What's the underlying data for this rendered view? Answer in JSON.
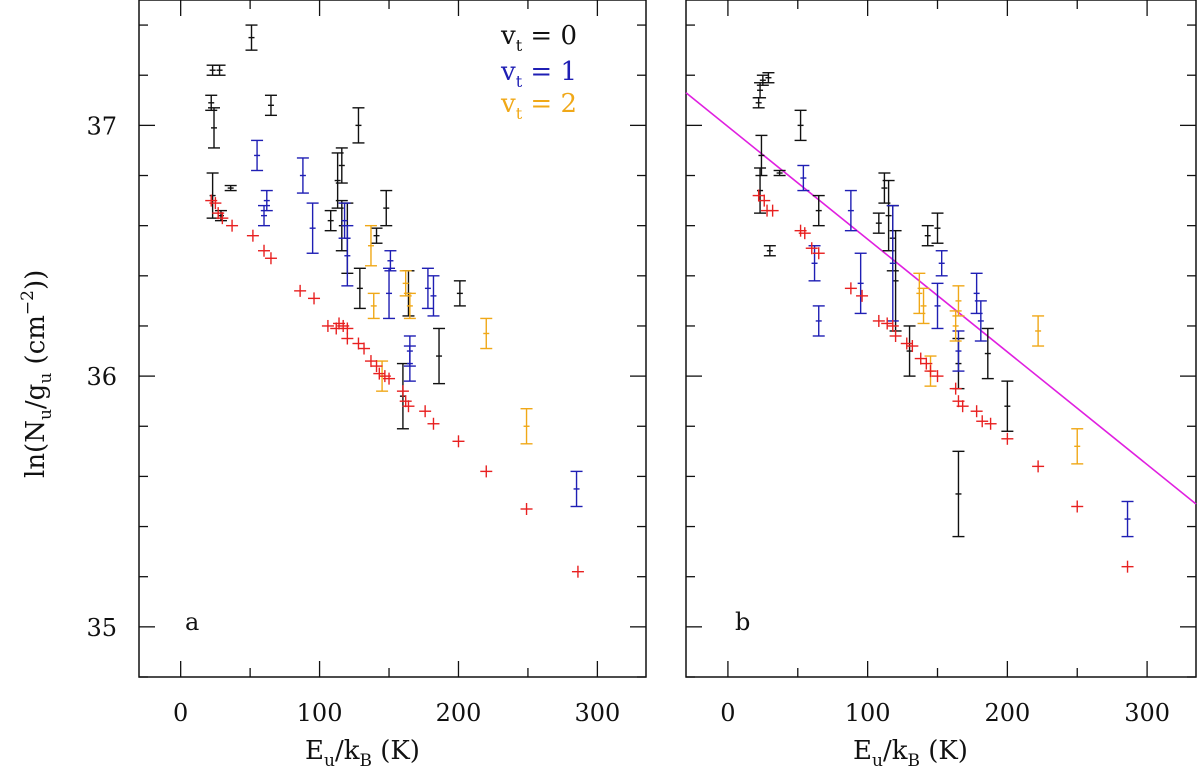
{
  "chart_data": [
    {
      "type": "scatter",
      "panel_label": "a",
      "xlabel": {
        "main": "E",
        "sub1": "u",
        "mid": "/k",
        "sub2": "B",
        "tail": " (K)"
      },
      "ylabel": {
        "main": "ln(N",
        "sub1": "u",
        "mid": "/g",
        "sub2": "u",
        "tail1": " (cm",
        "sup": "−2",
        "tail2": "))"
      },
      "xlim": [
        -30,
        335
      ],
      "ylim": [
        34.8,
        37.5
      ],
      "x_ticks": [
        "0",
        "100",
        "200",
        "300"
      ],
      "x_tick_values": [
        0,
        100,
        200,
        300
      ],
      "y_ticks": [
        "35",
        "36",
        "37"
      ],
      "y_tick_values": [
        35,
        36,
        37
      ],
      "legend": {
        "position": "top-right",
        "entries": [
          {
            "base": "v",
            "sub": "t",
            "text": " = 0",
            "color": "#111111"
          },
          {
            "base": "v",
            "sub": "t",
            "text": " = 1",
            "color": "#1f1fb4"
          },
          {
            "base": "v",
            "sub": "t",
            "text": " = 2",
            "color": "#f0a818"
          }
        ]
      },
      "series": [
        {
          "name": "vt=0",
          "color": "#111111",
          "marker": "errorbar",
          "points": [
            {
              "x": 23,
              "y": 37.22,
              "err": 0.02
            },
            {
              "x": 28,
              "y": 37.22,
              "err": 0.02
            },
            {
              "x": 22,
              "y": 37.09,
              "err": 0.03
            },
            {
              "x": 24,
              "y": 36.99,
              "err": 0.08
            },
            {
              "x": 23,
              "y": 36.72,
              "err": 0.09
            },
            {
              "x": 29,
              "y": 36.64,
              "err": 0.02
            },
            {
              "x": 36,
              "y": 36.75,
              "err": 0.01
            },
            {
              "x": 51,
              "y": 37.35,
              "err": 0.05
            },
            {
              "x": 65,
              "y": 37.08,
              "err": 0.04
            },
            {
              "x": 108,
              "y": 36.62,
              "err": 0.04
            },
            {
              "x": 113,
              "y": 36.78,
              "err": 0.11
            },
            {
              "x": 116,
              "y": 36.84,
              "err": 0.07
            },
            {
              "x": 116,
              "y": 36.6,
              "err": 0.1
            },
            {
              "x": 120,
              "y": 36.55,
              "err": 0.14
            },
            {
              "x": 128,
              "y": 37.0,
              "err": 0.07
            },
            {
              "x": 129,
              "y": 36.35,
              "err": 0.08
            },
            {
              "x": 141,
              "y": 36.56,
              "err": 0.03
            },
            {
              "x": 148,
              "y": 36.67,
              "err": 0.07
            },
            {
              "x": 160,
              "y": 35.92,
              "err": 0.13
            },
            {
              "x": 164,
              "y": 36.33,
              "err": 0.09
            },
            {
              "x": 186,
              "y": 36.08,
              "err": 0.11
            },
            {
              "x": 201,
              "y": 36.33,
              "err": 0.05
            }
          ]
        },
        {
          "name": "vt=1",
          "color": "#1f1fb4",
          "marker": "errorbar",
          "points": [
            {
              "x": 55,
              "y": 36.88,
              "err": 0.06
            },
            {
              "x": 60,
              "y": 36.64,
              "err": 0.04
            },
            {
              "x": 62,
              "y": 36.7,
              "err": 0.04
            },
            {
              "x": 88,
              "y": 36.8,
              "err": 0.07
            },
            {
              "x": 95,
              "y": 36.59,
              "err": 0.1
            },
            {
              "x": 118,
              "y": 36.62,
              "err": 0.07
            },
            {
              "x": 120,
              "y": 36.48,
              "err": 0.12
            },
            {
              "x": 150,
              "y": 36.33,
              "err": 0.1
            },
            {
              "x": 151,
              "y": 36.46,
              "err": 0.04
            },
            {
              "x": 165,
              "y": 36.05,
              "err": 0.07
            },
            {
              "x": 165,
              "y": 36.1,
              "err": 0.06
            },
            {
              "x": 178,
              "y": 36.35,
              "err": 0.08
            },
            {
              "x": 182,
              "y": 36.32,
              "err": 0.08
            },
            {
              "x": 285,
              "y": 35.55,
              "err": 0.07
            }
          ]
        },
        {
          "name": "vt=2",
          "color": "#f0a818",
          "marker": "errorbar",
          "points": [
            {
              "x": 137,
              "y": 36.52,
              "err": 0.08
            },
            {
              "x": 139,
              "y": 36.28,
              "err": 0.05
            },
            {
              "x": 145,
              "y": 36.0,
              "err": 0.06
            },
            {
              "x": 162,
              "y": 36.37,
              "err": 0.05
            },
            {
              "x": 165,
              "y": 36.28,
              "err": 0.05
            },
            {
              "x": 220,
              "y": 36.17,
              "err": 0.06
            },
            {
              "x": 249,
              "y": 35.8,
              "err": 0.07
            }
          ]
        },
        {
          "name": "model",
          "color": "#e82020",
          "marker": "plus",
          "points": [
            {
              "x": 22,
              "y": 36.7
            },
            {
              "x": 25,
              "y": 36.69
            },
            {
              "x": 27,
              "y": 36.65
            },
            {
              "x": 30,
              "y": 36.63
            },
            {
              "x": 37,
              "y": 36.6
            },
            {
              "x": 52,
              "y": 36.56
            },
            {
              "x": 60,
              "y": 36.5
            },
            {
              "x": 65,
              "y": 36.47
            },
            {
              "x": 86,
              "y": 36.34
            },
            {
              "x": 96,
              "y": 36.31
            },
            {
              "x": 106,
              "y": 36.2
            },
            {
              "x": 112,
              "y": 36.19
            },
            {
              "x": 114,
              "y": 36.21
            },
            {
              "x": 117,
              "y": 36.2
            },
            {
              "x": 120,
              "y": 36.19
            },
            {
              "x": 120,
              "y": 36.15
            },
            {
              "x": 128,
              "y": 36.13
            },
            {
              "x": 132,
              "y": 36.11
            },
            {
              "x": 137,
              "y": 36.06
            },
            {
              "x": 141,
              "y": 36.04
            },
            {
              "x": 143,
              "y": 36.01
            },
            {
              "x": 147,
              "y": 36.0
            },
            {
              "x": 150,
              "y": 35.99
            },
            {
              "x": 160,
              "y": 35.94
            },
            {
              "x": 162,
              "y": 35.9
            },
            {
              "x": 164,
              "y": 35.88
            },
            {
              "x": 176,
              "y": 35.86
            },
            {
              "x": 182,
              "y": 35.81
            },
            {
              "x": 200,
              "y": 35.74
            },
            {
              "x": 220,
              "y": 35.62
            },
            {
              "x": 249,
              "y": 35.47
            },
            {
              "x": 286,
              "y": 35.22
            }
          ]
        }
      ]
    },
    {
      "type": "scatter",
      "panel_label": "b",
      "xlabel": {
        "main": "E",
        "sub1": "u",
        "mid": "/k",
        "sub2": "B",
        "tail": " (K)"
      },
      "xlim": [
        -30,
        335
      ],
      "ylim": [
        34.8,
        37.5
      ],
      "x_ticks": [
        "0",
        "100",
        "200",
        "300"
      ],
      "x_tick_values": [
        0,
        100,
        200,
        300
      ],
      "y_tick_values": [
        35,
        36,
        37
      ],
      "fit_line": {
        "color": "#e020e0",
        "x": [
          -30,
          335
        ],
        "y": [
          37.13,
          35.49
        ]
      },
      "series": [
        {
          "name": "vt=0",
          "color": "#111111",
          "marker": "errorbar",
          "points": [
            {
              "x": 23,
              "y": 37.14,
              "err": 0.03
            },
            {
              "x": 25,
              "y": 37.18,
              "err": 0.02
            },
            {
              "x": 29,
              "y": 37.19,
              "err": 0.02
            },
            {
              "x": 22,
              "y": 37.09,
              "err": 0.02
            },
            {
              "x": 24,
              "y": 36.88,
              "err": 0.08
            },
            {
              "x": 23,
              "y": 36.74,
              "err": 0.09
            },
            {
              "x": 30,
              "y": 36.5,
              "err": 0.02
            },
            {
              "x": 37,
              "y": 36.81,
              "err": 0.01
            },
            {
              "x": 52,
              "y": 37.0,
              "err": 0.06
            },
            {
              "x": 65,
              "y": 36.66,
              "err": 0.06
            },
            {
              "x": 108,
              "y": 36.61,
              "err": 0.04
            },
            {
              "x": 112,
              "y": 36.75,
              "err": 0.06
            },
            {
              "x": 115,
              "y": 36.64,
              "err": 0.14
            },
            {
              "x": 118,
              "y": 36.55,
              "err": 0.13
            },
            {
              "x": 120,
              "y": 36.38,
              "err": 0.2
            },
            {
              "x": 130,
              "y": 36.1,
              "err": 0.1
            },
            {
              "x": 143,
              "y": 36.56,
              "err": 0.04
            },
            {
              "x": 150,
              "y": 36.59,
              "err": 0.06
            },
            {
              "x": 165,
              "y": 35.53,
              "err": 0.17
            },
            {
              "x": 165,
              "y": 36.05,
              "err": 0.1
            },
            {
              "x": 186,
              "y": 36.09,
              "err": 0.1
            },
            {
              "x": 200,
              "y": 35.88,
              "err": 0.1
            }
          ]
        },
        {
          "name": "vt=1",
          "color": "#1f1fb4",
          "marker": "errorbar",
          "points": [
            {
              "x": 54,
              "y": 36.79,
              "err": 0.05
            },
            {
              "x": 62,
              "y": 36.45,
              "err": 0.07
            },
            {
              "x": 65,
              "y": 36.22,
              "err": 0.06
            },
            {
              "x": 88,
              "y": 36.66,
              "err": 0.08
            },
            {
              "x": 95,
              "y": 36.37,
              "err": 0.12
            },
            {
              "x": 118,
              "y": 36.45,
              "err": 0.23
            },
            {
              "x": 150,
              "y": 36.28,
              "err": 0.09
            },
            {
              "x": 153,
              "y": 36.45,
              "err": 0.05
            },
            {
              "x": 165,
              "y": 36.1,
              "err": 0.08
            },
            {
              "x": 178,
              "y": 36.33,
              "err": 0.08
            },
            {
              "x": 181,
              "y": 36.22,
              "err": 0.08
            },
            {
              "x": 286,
              "y": 35.43,
              "err": 0.07
            }
          ]
        },
        {
          "name": "vt=2",
          "color": "#f0a818",
          "marker": "errorbar",
          "points": [
            {
              "x": 137,
              "y": 36.33,
              "err": 0.08
            },
            {
              "x": 140,
              "y": 36.28,
              "err": 0.07
            },
            {
              "x": 145,
              "y": 36.02,
              "err": 0.06
            },
            {
              "x": 163,
              "y": 36.2,
              "err": 0.06
            },
            {
              "x": 165,
              "y": 36.3,
              "err": 0.06
            },
            {
              "x": 222,
              "y": 36.18,
              "err": 0.06
            },
            {
              "x": 250,
              "y": 35.72,
              "err": 0.07
            }
          ]
        },
        {
          "name": "model",
          "color": "#e82020",
          "marker": "plus",
          "points": [
            {
              "x": 22,
              "y": 36.72
            },
            {
              "x": 26,
              "y": 36.7
            },
            {
              "x": 28,
              "y": 36.66
            },
            {
              "x": 32,
              "y": 36.66
            },
            {
              "x": 52,
              "y": 36.58
            },
            {
              "x": 55,
              "y": 36.57
            },
            {
              "x": 60,
              "y": 36.51
            },
            {
              "x": 65,
              "y": 36.49
            },
            {
              "x": 88,
              "y": 36.35
            },
            {
              "x": 96,
              "y": 36.32
            },
            {
              "x": 108,
              "y": 36.22
            },
            {
              "x": 114,
              "y": 36.21
            },
            {
              "x": 118,
              "y": 36.2
            },
            {
              "x": 120,
              "y": 36.16
            },
            {
              "x": 128,
              "y": 36.13
            },
            {
              "x": 132,
              "y": 36.12
            },
            {
              "x": 138,
              "y": 36.07
            },
            {
              "x": 142,
              "y": 36.05
            },
            {
              "x": 145,
              "y": 36.02
            },
            {
              "x": 150,
              "y": 36.0
            },
            {
              "x": 163,
              "y": 35.95
            },
            {
              "x": 165,
              "y": 35.9
            },
            {
              "x": 168,
              "y": 35.88
            },
            {
              "x": 178,
              "y": 35.86
            },
            {
              "x": 182,
              "y": 35.82
            },
            {
              "x": 188,
              "y": 35.81
            },
            {
              "x": 200,
              "y": 35.75
            },
            {
              "x": 222,
              "y": 35.64
            },
            {
              "x": 250,
              "y": 35.48
            },
            {
              "x": 286,
              "y": 35.24
            }
          ]
        }
      ]
    }
  ]
}
